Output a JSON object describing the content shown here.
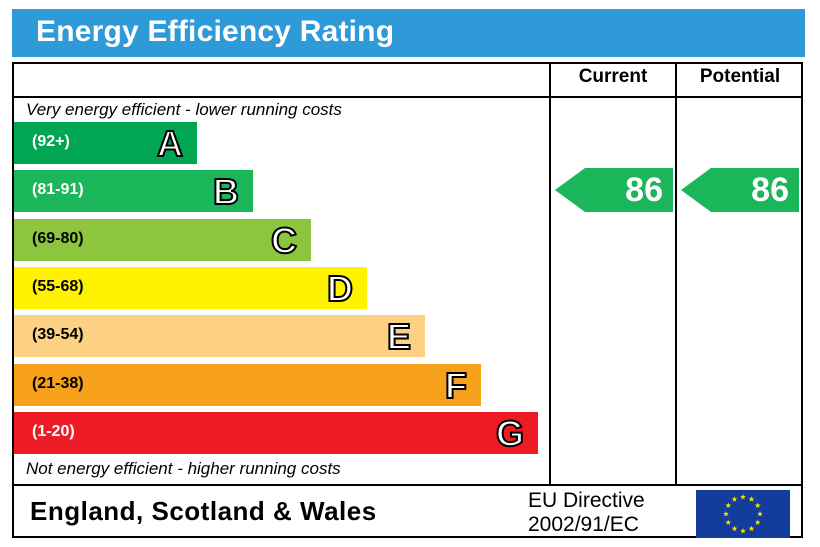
{
  "title": "Energy Efficiency Rating",
  "columns": {
    "current": "Current",
    "potential": "Potential"
  },
  "notes": {
    "top": "Very energy efficient - lower running costs",
    "bottom": "Not energy efficient - higher running costs"
  },
  "colors": {
    "title_bar": "#2f9ad8",
    "A": "#00a651",
    "B": "#1bb55a",
    "C": "#8cc63f",
    "D": "#fff200",
    "E": "#fcd183",
    "F": "#f7a11a",
    "G": "#ed1c24",
    "rating_arrow": "#1bb55a",
    "eu_flag": "#143c9c",
    "eu_stars": "#ffdd00"
  },
  "chart_data": {
    "type": "bar",
    "title": "Energy Efficiency Rating",
    "categories": [
      "A",
      "B",
      "C",
      "D",
      "E",
      "F",
      "G"
    ],
    "ranges": [
      "(92+)",
      "(81-91)",
      "(69-80)",
      "(55-68)",
      "(39-54)",
      "(21-38)",
      "(1-20)"
    ],
    "current": 86,
    "potential": 86
  },
  "footer": {
    "region": "England, Scotland & Wales",
    "directive_line1": "EU Directive",
    "directive_line2": "2002/91/EC"
  }
}
